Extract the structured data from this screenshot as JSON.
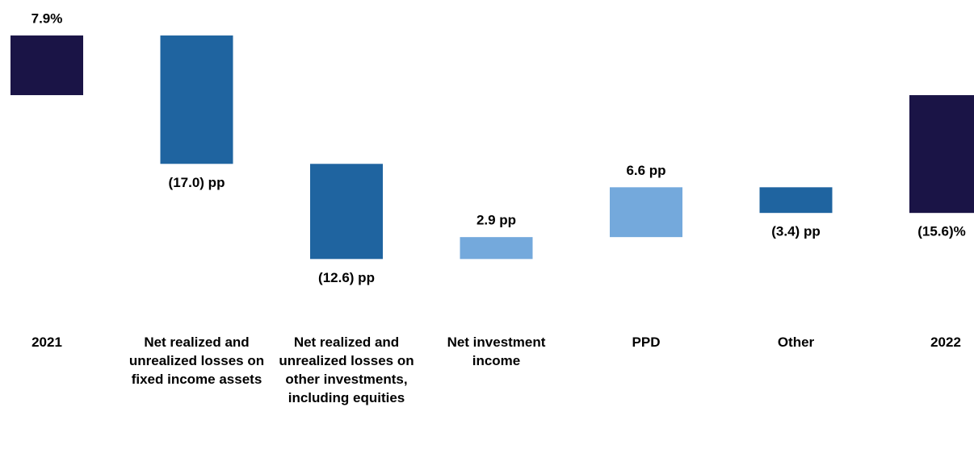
{
  "chart_data": {
    "type": "waterfall",
    "categories": [
      "2021",
      "Net realized and unrealized losses on fixed income assets",
      "Net realized and unrealized losses on other investments, including equities",
      "Net investment income",
      "PPD",
      "Other",
      "2022"
    ],
    "values": [
      7.9,
      -17.0,
      -12.6,
      2.9,
      6.6,
      -3.4,
      -15.6
    ],
    "value_labels": [
      "7.9%",
      "(17.0) pp",
      "(12.6) pp",
      "2.9 pp",
      "6.6 pp",
      "(3.4) pp",
      "(15.6)%"
    ],
    "measure": [
      "absolute",
      "relative",
      "relative",
      "relative",
      "relative",
      "relative",
      "absolute"
    ],
    "total_color": "#1a1446",
    "decrease_color": "#1f64a0",
    "increase_color": "#74a9dc",
    "ylim": [
      -23,
      12.6
    ]
  }
}
